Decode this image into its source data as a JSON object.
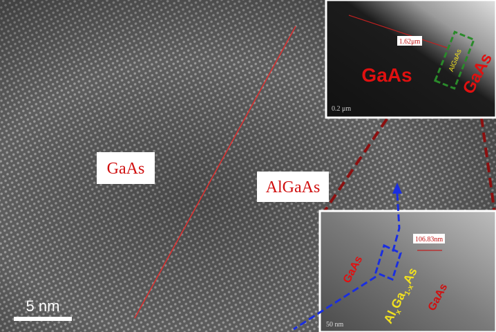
{
  "main": {
    "labels": [
      "GaAs",
      "AlGaAs"
    ],
    "scale_bar": "5 nm"
  },
  "inset_top": {
    "measurement": "1.62μm",
    "region": "AlGaAs",
    "left_label": "GaAs",
    "right_label": "GaAs",
    "scale_bar": "0.2 μm"
  },
  "inset_bottom": {
    "measurement": "106.83nm",
    "left_label": "GaAs",
    "region_parts": [
      "Al",
      "x",
      "Ga",
      "1-x",
      "As"
    ],
    "right_label": "GaAs",
    "scale_bar": "50 nm"
  }
}
